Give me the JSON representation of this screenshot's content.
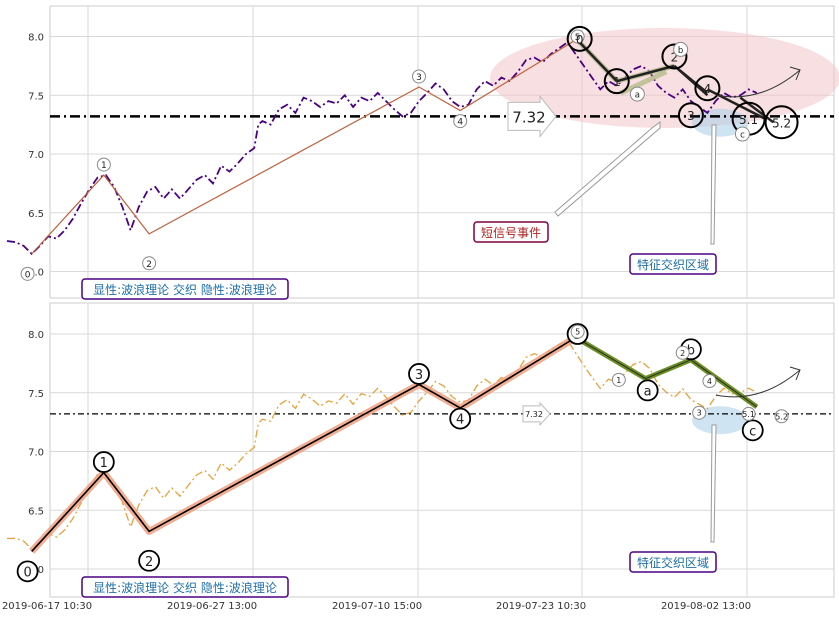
{
  "chart_data": [
    {
      "type": "line",
      "panel": "top",
      "ylim": [
        5.82,
        8.27
      ],
      "yticks": [
        "6.0",
        "6.5",
        "7.0",
        "7.5",
        "8.0"
      ],
      "ytick_values": [
        6.0,
        6.5,
        7.0,
        7.5,
        8.0
      ],
      "grid": true,
      "price_color": "#4b0082",
      "price_style": "dash-dot",
      "price_series": [
        [
          0.0,
          6.26
        ],
        [
          0.2,
          6.25
        ],
        [
          0.4,
          6.22
        ],
        [
          0.6,
          6.15
        ],
        [
          0.8,
          6.22
        ],
        [
          1.0,
          6.3
        ],
        [
          1.2,
          6.28
        ],
        [
          1.4,
          6.35
        ],
        [
          1.6,
          6.45
        ],
        [
          1.8,
          6.58
        ],
        [
          2.0,
          6.7
        ],
        [
          2.2,
          6.8
        ],
        [
          2.4,
          6.82
        ],
        [
          2.6,
          6.72
        ],
        [
          2.8,
          6.55
        ],
        [
          3.0,
          6.35
        ],
        [
          3.2,
          6.55
        ],
        [
          3.4,
          6.68
        ],
        [
          3.6,
          6.72
        ],
        [
          3.8,
          6.62
        ],
        [
          4.0,
          6.7
        ],
        [
          4.2,
          6.62
        ],
        [
          4.4,
          6.7
        ],
        [
          4.6,
          6.78
        ],
        [
          4.8,
          6.82
        ],
        [
          5.0,
          6.75
        ],
        [
          5.2,
          6.9
        ],
        [
          5.4,
          6.85
        ],
        [
          5.6,
          6.92
        ],
        [
          5.8,
          7.0
        ],
        [
          6.0,
          7.05
        ],
        [
          6.1,
          7.25
        ],
        [
          6.2,
          7.28
        ],
        [
          6.4,
          7.25
        ],
        [
          6.6,
          7.38
        ],
        [
          6.8,
          7.42
        ],
        [
          7.0,
          7.35
        ],
        [
          7.2,
          7.48
        ],
        [
          7.4,
          7.45
        ],
        [
          7.6,
          7.4
        ],
        [
          7.8,
          7.45
        ],
        [
          8.0,
          7.43
        ],
        [
          8.2,
          7.5
        ],
        [
          8.4,
          7.4
        ],
        [
          8.6,
          7.48
        ],
        [
          8.8,
          7.45
        ],
        [
          9.0,
          7.52
        ],
        [
          9.2,
          7.45
        ],
        [
          9.4,
          7.38
        ],
        [
          9.6,
          7.32
        ],
        [
          9.8,
          7.35
        ],
        [
          10.0,
          7.45
        ],
        [
          10.2,
          7.52
        ],
        [
          10.4,
          7.6
        ],
        [
          10.6,
          7.55
        ],
        [
          10.8,
          7.45
        ],
        [
          11.0,
          7.4
        ],
        [
          11.2,
          7.42
        ],
        [
          11.4,
          7.55
        ],
        [
          11.6,
          7.62
        ],
        [
          11.8,
          7.58
        ],
        [
          12.0,
          7.65
        ],
        [
          12.2,
          7.62
        ],
        [
          12.4,
          7.7
        ],
        [
          12.6,
          7.8
        ],
        [
          12.8,
          7.82
        ],
        [
          13.0,
          7.78
        ],
        [
          13.2,
          7.85
        ],
        [
          13.4,
          7.9
        ],
        [
          13.6,
          7.95
        ],
        [
          13.8,
          7.85
        ],
        [
          14.0,
          7.75
        ],
        [
          14.2,
          7.65
        ],
        [
          14.4,
          7.55
        ],
        [
          14.6,
          7.62
        ],
        [
          14.8,
          7.58
        ],
        [
          15.0,
          7.65
        ],
        [
          15.2,
          7.72
        ],
        [
          15.4,
          7.75
        ],
        [
          15.6,
          7.7
        ],
        [
          15.8,
          7.58
        ],
        [
          16.0,
          7.52
        ],
        [
          16.2,
          7.48
        ],
        [
          16.4,
          7.55
        ],
        [
          16.6,
          7.45
        ],
        [
          16.8,
          7.4
        ],
        [
          17.0,
          7.35
        ],
        [
          17.2,
          7.45
        ],
        [
          17.4,
          7.52
        ],
        [
          17.6,
          7.48
        ],
        [
          17.8,
          7.5
        ],
        [
          18.0,
          7.55
        ],
        [
          18.2,
          7.52
        ]
      ],
      "wave": {
        "x": [
          0.6,
          2.35,
          3.45,
          10.0,
          11.0,
          13.8
        ],
        "y": [
          6.15,
          6.82,
          6.32,
          7.57,
          7.37,
          7.97
        ]
      },
      "wave_labels": [
        {
          "text": "0",
          "x": 0.5,
          "y": 5.98
        },
        {
          "text": "1",
          "x": 2.35,
          "y": 6.91
        },
        {
          "text": "2",
          "x": 3.45,
          "y": 6.07
        },
        {
          "text": "3",
          "x": 10.0,
          "y": 7.66
        },
        {
          "text": "4",
          "x": 11.0,
          "y": 7.28
        },
        {
          "text": "5",
          "x": 13.85,
          "y": 8.0
        }
      ],
      "ghost_pairs": [
        {
          "x1": 14.8,
          "y1": 7.62,
          "x2": 16.2,
          "y2": 7.75
        },
        {
          "x1": 14.9,
          "y1": 7.52,
          "x2": 16.0,
          "y2": 7.7
        },
        {
          "x1": 13.9,
          "y1": 7.95,
          "x2": 14.8,
          "y2": 7.62
        }
      ],
      "dark_pairs": [
        {
          "x1": 13.9,
          "y1": 7.95,
          "x2": 14.8,
          "y2": 7.62
        },
        {
          "x1": 14.8,
          "y1": 7.62,
          "x2": 16.2,
          "y2": 7.75
        },
        {
          "x1": 16.2,
          "y1": 7.75,
          "x2": 17.0,
          "y2": 7.5
        },
        {
          "x1": 17.0,
          "y1": 7.55,
          "x2": 18.4,
          "y2": 7.3
        },
        {
          "x1": 16.3,
          "y1": 7.72,
          "x2": 17.0,
          "y2": 7.52
        },
        {
          "x1": 17.8,
          "y1": 7.48,
          "x2": 18.6,
          "y2": 7.27
        }
      ],
      "pattern_circles": [
        {
          "text": "0",
          "x": 13.9,
          "y": 7.98,
          "r": 12,
          "big": true
        },
        {
          "text": "1",
          "x": 14.8,
          "y": 7.62,
          "r": 12,
          "big": true
        },
        {
          "text": "2",
          "x": 16.2,
          "y": 7.83,
          "r": 12,
          "big": true
        },
        {
          "text": "3",
          "x": 16.6,
          "y": 7.33,
          "r": 12,
          "big": true
        },
        {
          "text": "4",
          "x": 17.0,
          "y": 7.56,
          "r": 12,
          "big": true
        },
        {
          "text": "5.1",
          "x": 18.0,
          "y": 7.3,
          "r": 16,
          "big": true
        },
        {
          "text": "5.2",
          "x": 18.8,
          "y": 7.27,
          "r": 16,
          "big": true
        },
        {
          "text": "a",
          "x": 15.3,
          "y": 7.51,
          "r": 7,
          "big": false
        },
        {
          "text": "b",
          "x": 16.35,
          "y": 7.89,
          "r": 7,
          "big": false
        },
        {
          "text": "c",
          "x": 17.85,
          "y": 7.17,
          "r": 7,
          "big": false
        }
      ],
      "hline": {
        "y": 7.32,
        "label": "7.32"
      },
      "annotations": {
        "event": "短信号事件",
        "zone": "特征交织区域",
        "legend": "显性:波浪理论 交织 隐性:波浪理论"
      }
    },
    {
      "type": "line",
      "panel": "bottom",
      "ylim": [
        5.82,
        8.27
      ],
      "yticks": [
        "6.0",
        "6.5",
        "7.0",
        "7.5",
        "8.0"
      ],
      "ytick_values": [
        6.0,
        6.5,
        7.0,
        7.5,
        8.0
      ],
      "grid": true,
      "price_color": "#e8a23a",
      "price_style": "dash-dot",
      "wave": {
        "x": [
          0.6,
          2.35,
          3.45,
          10.0,
          11.0,
          13.8
        ],
        "y": [
          6.15,
          6.82,
          6.32,
          7.57,
          7.37,
          7.97
        ]
      },
      "wave_labels": [
        {
          "text": "0",
          "x": 0.5,
          "y": 5.98
        },
        {
          "text": "1",
          "x": 2.35,
          "y": 6.91
        },
        {
          "text": "2",
          "x": 3.45,
          "y": 6.07
        },
        {
          "text": "3",
          "x": 10.0,
          "y": 7.66
        },
        {
          "text": "4",
          "x": 11.0,
          "y": 7.28
        },
        {
          "text": "5",
          "x": 13.85,
          "y": 8.0
        }
      ],
      "correction": {
        "x": [
          13.8,
          15.5,
          16.6,
          18.2
        ],
        "y": [
          7.97,
          7.62,
          7.78,
          7.38
        ]
      },
      "correction_labels": [
        {
          "text": "a",
          "x": 15.55,
          "y": 7.52
        },
        {
          "text": "b",
          "x": 16.6,
          "y": 7.87
        },
        {
          "text": "c",
          "x": 18.1,
          "y": 7.18
        }
      ],
      "small_labels": [
        {
          "text": "5",
          "x": 13.85,
          "y": 8.02
        },
        {
          "text": "1",
          "x": 14.85,
          "y": 7.61
        },
        {
          "text": "2",
          "x": 16.4,
          "y": 7.84
        },
        {
          "text": "3",
          "x": 16.8,
          "y": 7.33
        },
        {
          "text": "4",
          "x": 17.05,
          "y": 7.6
        },
        {
          "text": "5.1",
          "x": 18.0,
          "y": 7.32
        },
        {
          "text": "5.2",
          "x": 18.8,
          "y": 7.3
        }
      ],
      "hline": {
        "y": 7.32,
        "label": "7.32"
      },
      "annotations": {
        "zone": "特征交织区域",
        "legend": "显性:波浪理论 交织 隐性:波浪理论"
      }
    }
  ],
  "xtick_labels": [
    "2019-06-17 10:30",
    "2019-06-27 13:00",
    "2019-07-10 15:00",
    "2019-07-23 10:30",
    "2019-08-02 13:00"
  ],
  "xtick_values": [
    0,
    4,
    8,
    12,
    16
  ]
}
